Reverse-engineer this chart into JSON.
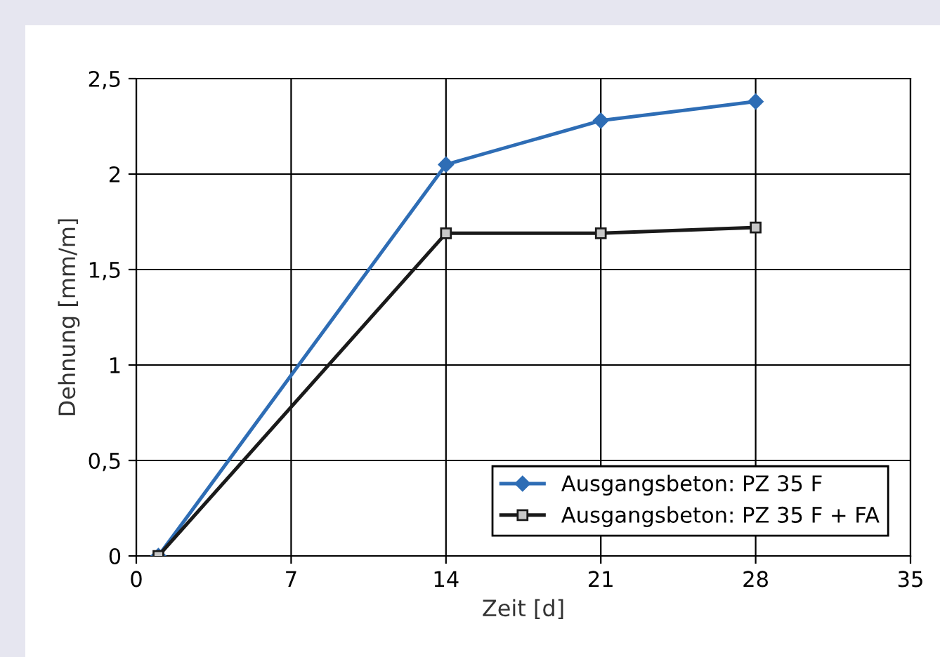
{
  "chart_data": {
    "type": "line",
    "xlabel": "Zeit [d]",
    "ylabel": "Dehnung [mm/m]",
    "x": [
      1,
      14,
      21,
      28
    ],
    "series": [
      {
        "name": "Ausgangsbeton: PZ 35 F",
        "color": "#2e6db5",
        "values": [
          0,
          2.05,
          2.28,
          2.38
        ],
        "marker": "diamond"
      },
      {
        "name": "Ausgangsbeton: PZ 35 F + FA",
        "color": "#1a1a1a",
        "values": [
          0,
          1.69,
          1.69,
          1.72
        ],
        "marker": "square"
      }
    ],
    "xlim": [
      0,
      35
    ],
    "xticks": [
      0,
      7,
      14,
      21,
      28,
      35
    ],
    "ylim": [
      0,
      2.5
    ],
    "yticks": [
      {
        "value": 0,
        "label": "0"
      },
      {
        "value": 0.5,
        "label": "0,5"
      },
      {
        "value": 1,
        "label": "1"
      },
      {
        "value": 1.5,
        "label": "1,5"
      },
      {
        "value": 2,
        "label": "2"
      },
      {
        "value": 2.5,
        "label": "2,5"
      }
    ],
    "grid": true,
    "legend": "bottom right",
    "line_style": "solid"
  }
}
